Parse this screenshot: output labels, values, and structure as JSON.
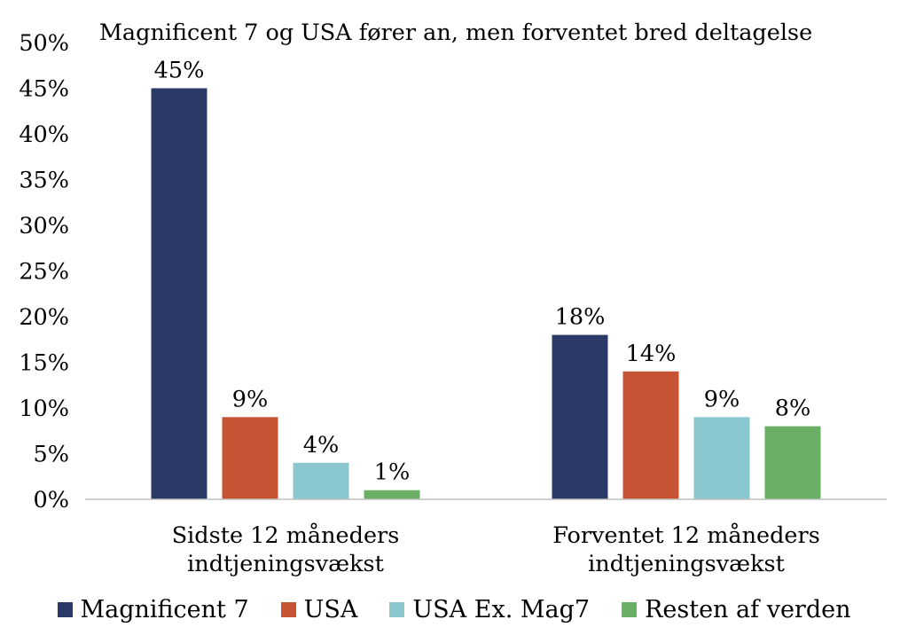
{
  "chart_data": {
    "type": "bar",
    "title": "Magnificent 7 og USA fører an, men forventet bred deltagelse",
    "categories": [
      [
        "Sidste 12 måneders",
        "indtjeningsvækst"
      ],
      [
        "Forventet 12 måneders",
        "indtjeningsvækst"
      ]
    ],
    "series": [
      {
        "name": "Magnificent 7",
        "values": [
          45,
          18
        ],
        "labels": [
          "45%",
          "18%"
        ],
        "color": "#2B3966"
      },
      {
        "name": "USA",
        "values": [
          9,
          14
        ],
        "labels": [
          "9%",
          "14%"
        ],
        "color": "#C65434"
      },
      {
        "name": "USA Ex. Mag7",
        "values": [
          4,
          9
        ],
        "labels": [
          "4%",
          "9%"
        ],
        "color": "#8AC7CF"
      },
      {
        "name": "Resten af verden",
        "values": [
          1,
          8
        ],
        "labels": [
          "1%",
          "8%"
        ],
        "color": "#6BAE65"
      }
    ],
    "ylim": [
      0,
      50
    ],
    "yticks": [
      {
        "value": 0,
        "label": "0%"
      },
      {
        "value": 5,
        "label": "5%"
      },
      {
        "value": 10,
        "label": "10%"
      },
      {
        "value": 15,
        "label": "15%"
      },
      {
        "value": 20,
        "label": "20%"
      },
      {
        "value": 25,
        "label": "25%"
      },
      {
        "value": 30,
        "label": "30%"
      },
      {
        "value": 35,
        "label": "35%"
      },
      {
        "value": 40,
        "label": "40%"
      },
      {
        "value": 45,
        "label": "45%"
      },
      {
        "value": 50,
        "label": "50%"
      }
    ],
    "grid": false,
    "legend_position": "bottom"
  },
  "legend": {
    "items": [
      {
        "label": "Magnificent 7",
        "color": "#2B3966"
      },
      {
        "label": "USA",
        "color": "#C65434"
      },
      {
        "label": "USA Ex. Mag7",
        "color": "#8AC7CF"
      },
      {
        "label": "Resten af verden",
        "color": "#6BAE65"
      }
    ]
  }
}
